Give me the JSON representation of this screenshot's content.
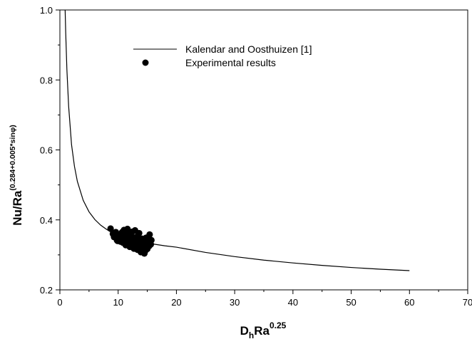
{
  "chart_data": {
    "type": "scatter",
    "xlim": [
      0,
      70
    ],
    "ylim": [
      0.2,
      1.0
    ],
    "x_ticks": [
      "0",
      "10",
      "20",
      "30",
      "40",
      "50",
      "60",
      "70"
    ],
    "y_ticks": [
      "0.2",
      "0.4",
      "0.6",
      "0.8",
      "1.0"
    ],
    "xlabel": {
      "main": "D",
      "sub": "h",
      "mid": "Ra",
      "sup": "0.25"
    },
    "ylabel": {
      "main": "Nu/Ra",
      "sup": "(0.284+0.005*sinφ)"
    },
    "grid": false,
    "legend_position": "top-center",
    "series": [
      {
        "name": "Kalendar and Oosthuizen [1]",
        "kind": "line",
        "color": "#000000",
        "x": [
          0.9,
          1.0,
          1.2,
          1.5,
          2.0,
          2.5,
          3.0,
          4.0,
          5.0,
          6.0,
          7.0,
          8.0,
          9.0,
          10.0,
          12.0,
          14.0,
          16.0,
          18.0,
          20.0,
          25.0,
          30.0,
          35.0,
          40.0,
          45.0,
          50.0,
          55.0,
          60.0
        ],
        "y": [
          1.0,
          0.935,
          0.83,
          0.725,
          0.615,
          0.553,
          0.51,
          0.456,
          0.423,
          0.401,
          0.385,
          0.373,
          0.363,
          0.356,
          0.345,
          0.337,
          0.331,
          0.326,
          0.322,
          0.307,
          0.295,
          0.285,
          0.277,
          0.27,
          0.264,
          0.259,
          0.255
        ]
      },
      {
        "name": "Experimental results",
        "kind": "scatter",
        "color": "#000000",
        "points": [
          [
            8.7,
            0.375
          ],
          [
            9.1,
            0.36
          ],
          [
            9.3,
            0.351
          ],
          [
            9.6,
            0.365
          ],
          [
            9.8,
            0.342
          ],
          [
            10.0,
            0.357
          ],
          [
            10.2,
            0.347
          ],
          [
            10.4,
            0.338
          ],
          [
            10.6,
            0.362
          ],
          [
            10.8,
            0.335
          ],
          [
            11.0,
            0.371
          ],
          [
            11.1,
            0.345
          ],
          [
            11.3,
            0.328
          ],
          [
            11.5,
            0.352
          ],
          [
            11.6,
            0.374
          ],
          [
            11.8,
            0.34
          ],
          [
            12.0,
            0.323
          ],
          [
            12.1,
            0.358
          ],
          [
            12.3,
            0.332
          ],
          [
            12.4,
            0.366
          ],
          [
            12.6,
            0.344
          ],
          [
            12.7,
            0.318
          ],
          [
            12.9,
            0.37
          ],
          [
            13.0,
            0.336
          ],
          [
            13.2,
            0.352
          ],
          [
            13.3,
            0.315
          ],
          [
            13.5,
            0.341
          ],
          [
            13.6,
            0.362
          ],
          [
            13.8,
            0.327
          ],
          [
            13.9,
            0.308
          ],
          [
            14.1,
            0.346
          ],
          [
            14.2,
            0.32
          ],
          [
            14.4,
            0.338
          ],
          [
            14.5,
            0.304
          ],
          [
            14.7,
            0.331
          ],
          [
            14.8,
            0.349
          ],
          [
            15.0,
            0.317
          ],
          [
            15.1,
            0.34
          ],
          [
            15.3,
            0.325
          ],
          [
            15.4,
            0.358
          ],
          [
            15.6,
            0.33
          ],
          [
            15.7,
            0.342
          ],
          [
            10.5,
            0.35
          ],
          [
            11.9,
            0.355
          ],
          [
            12.8,
            0.33
          ],
          [
            13.4,
            0.325
          ],
          [
            14.0,
            0.32
          ],
          [
            9.9,
            0.34
          ],
          [
            11.4,
            0.36
          ],
          [
            12.2,
            0.34
          ],
          [
            13.7,
            0.345
          ],
          [
            14.6,
            0.31
          ],
          [
            15.2,
            0.335
          ],
          [
            10.7,
            0.365
          ],
          [
            12.5,
            0.35
          ]
        ]
      }
    ]
  }
}
